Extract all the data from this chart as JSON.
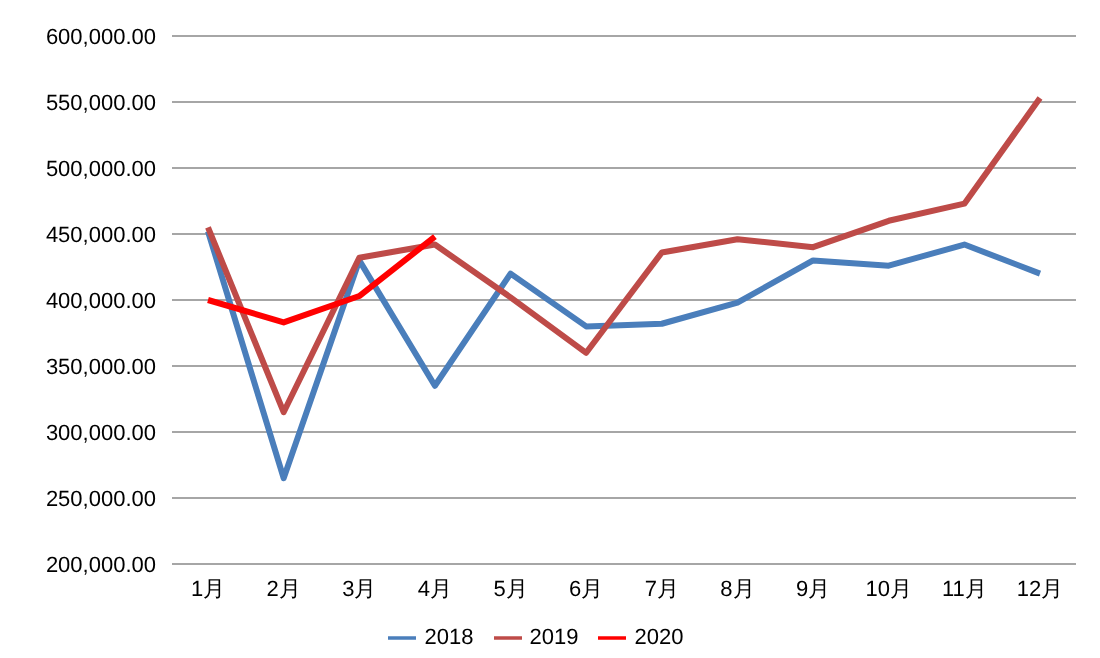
{
  "chart_data": {
    "type": "line",
    "categories": [
      "1月",
      "2月",
      "3月",
      "4月",
      "5月",
      "6月",
      "7月",
      "8月",
      "9月",
      "10月",
      "11月",
      "12月"
    ],
    "series": [
      {
        "name": "2018",
        "color": "#4a7ebb",
        "values": [
          452000,
          265000,
          430000,
          335000,
          420000,
          380000,
          382000,
          398000,
          430000,
          426000,
          442000,
          420000
        ]
      },
      {
        "name": "2019",
        "color": "#be4b48",
        "values": [
          455000,
          315000,
          432000,
          442000,
          402000,
          360000,
          436000,
          446000,
          440000,
          460000,
          473000,
          553000
        ]
      },
      {
        "name": "2020",
        "color": "#ff0000",
        "values": [
          400000,
          383000,
          403000,
          448000,
          null,
          null,
          null,
          null,
          null,
          null,
          null,
          null
        ]
      }
    ],
    "ylim": [
      200000,
      600000
    ],
    "yticks": [
      {
        "value": 200000,
        "label": "200,000.00"
      },
      {
        "value": 250000,
        "label": "250,000.00"
      },
      {
        "value": 300000,
        "label": "300,000.00"
      },
      {
        "value": 350000,
        "label": "350,000.00"
      },
      {
        "value": 400000,
        "label": "400,000.00"
      },
      {
        "value": 450000,
        "label": "450,000.00"
      },
      {
        "value": 500000,
        "label": "500,000.00"
      },
      {
        "value": 550000,
        "label": "550,000.00"
      },
      {
        "value": 600000,
        "label": "600,000.00"
      }
    ],
    "grid": "y",
    "legend": "bottom",
    "marker": "none",
    "line_style": "solid"
  }
}
